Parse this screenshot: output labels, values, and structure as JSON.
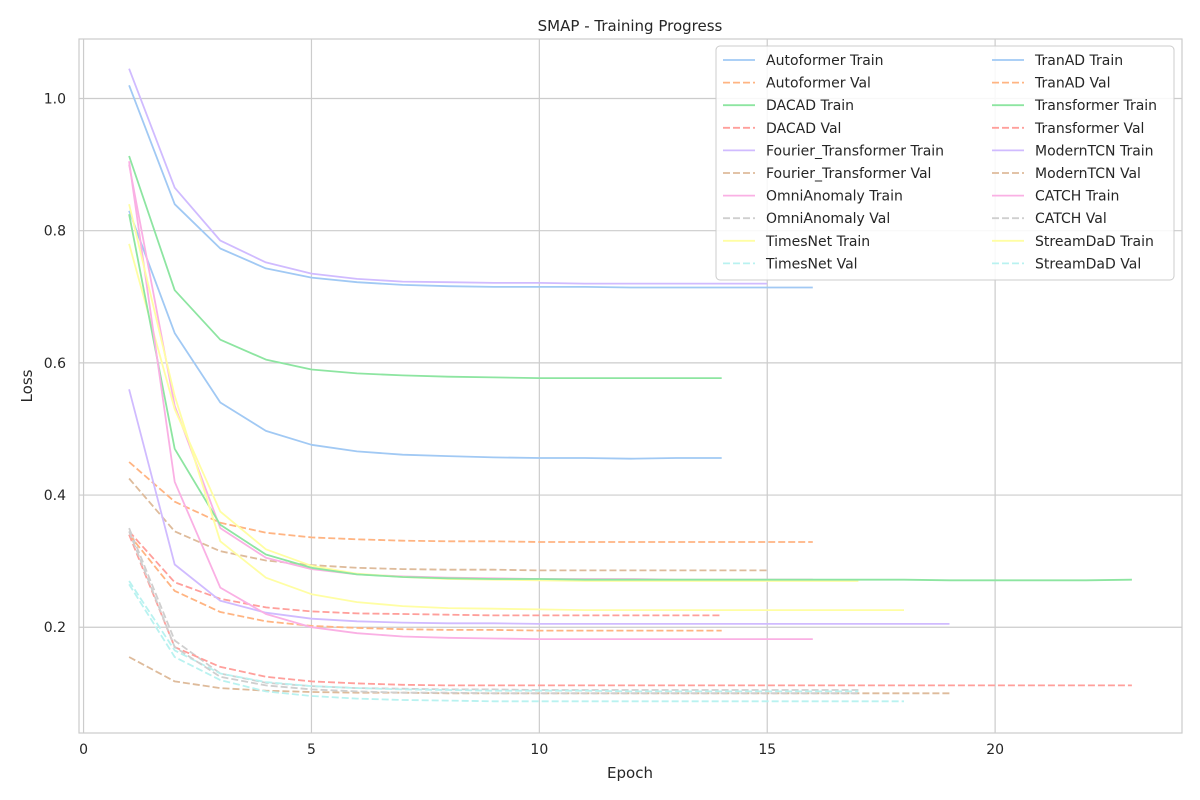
{
  "chart_data": {
    "type": "line",
    "title": "SMAP - Training Progress",
    "xlabel": "Epoch",
    "ylabel": "Loss",
    "xlim": [
      -0.1,
      24.1
    ],
    "ylim": [
      0.04,
      1.09
    ],
    "xticks": [
      0,
      5,
      10,
      15,
      20
    ],
    "yticks": [
      0.2,
      0.4,
      0.6,
      0.8,
      1.0
    ],
    "ytick_labels": [
      "0.2",
      "0.4",
      "0.6",
      "0.8",
      "1.0"
    ],
    "grid": true,
    "legend_placement": "upper right, 2 columns",
    "colors": {
      "blue": "#a1c9f4",
      "orange": "#ffb482",
      "green": "#8de5a1",
      "red": "#ff9f9b",
      "purple": "#d0bbff",
      "brown": "#debb9b",
      "pink": "#fab0e4",
      "gray": "#cfcfcf",
      "yellow": "#fffea3",
      "cyan": "#b9f2f0"
    },
    "series": [
      {
        "name": "Autoformer Train",
        "color": "blue",
        "style": "solid",
        "x": [
          1,
          2,
          3,
          4,
          5,
          6,
          7,
          8,
          9,
          10,
          11,
          12,
          13,
          14
        ],
        "y": [
          0.83,
          0.645,
          0.54,
          0.497,
          0.476,
          0.466,
          0.461,
          0.459,
          0.457,
          0.456,
          0.456,
          0.455,
          0.456,
          0.456
        ]
      },
      {
        "name": "Autoformer Val",
        "color": "orange",
        "style": "dashed",
        "x": [
          1,
          2,
          3,
          4,
          5,
          6,
          7,
          8,
          9,
          10,
          11,
          12,
          13,
          14,
          15,
          16
        ],
        "y": [
          0.45,
          0.39,
          0.358,
          0.343,
          0.336,
          0.333,
          0.331,
          0.33,
          0.33,
          0.329,
          0.329,
          0.329,
          0.329,
          0.329,
          0.329,
          0.329
        ]
      },
      {
        "name": "DACAD Train",
        "color": "green",
        "style": "solid",
        "x": [
          1,
          2,
          3,
          4,
          5,
          6,
          7,
          8,
          9,
          10,
          11,
          12,
          13,
          14
        ],
        "y": [
          0.913,
          0.71,
          0.635,
          0.605,
          0.59,
          0.584,
          0.581,
          0.579,
          0.578,
          0.577,
          0.577,
          0.577,
          0.577,
          0.577
        ]
      },
      {
        "name": "DACAD Val",
        "color": "red",
        "style": "dashed",
        "x": [
          1,
          2,
          3,
          4,
          5,
          6,
          7,
          8,
          9,
          10,
          11,
          12,
          13,
          14
        ],
        "y": [
          0.345,
          0.268,
          0.243,
          0.23,
          0.224,
          0.221,
          0.22,
          0.219,
          0.218,
          0.218,
          0.218,
          0.218,
          0.218,
          0.218
        ]
      },
      {
        "name": "Fourier_Transformer Train",
        "color": "purple",
        "style": "solid",
        "x": [
          1,
          2,
          3,
          4,
          5,
          6,
          7,
          8,
          9,
          10,
          11,
          12,
          13,
          14,
          15
        ],
        "y": [
          1.045,
          0.865,
          0.785,
          0.752,
          0.735,
          0.727,
          0.723,
          0.722,
          0.721,
          0.721,
          0.72,
          0.72,
          0.72,
          0.72,
          0.72
        ]
      },
      {
        "name": "Fourier_Transformer Val",
        "color": "brown",
        "style": "dashed",
        "x": [
          1,
          2,
          3,
          4,
          5,
          6,
          7,
          8,
          9,
          10,
          11,
          12,
          13,
          14,
          15
        ],
        "y": [
          0.425,
          0.345,
          0.315,
          0.301,
          0.294,
          0.29,
          0.288,
          0.287,
          0.287,
          0.286,
          0.286,
          0.286,
          0.286,
          0.286,
          0.286
        ]
      },
      {
        "name": "OmniAnomaly Train",
        "color": "pink",
        "style": "solid",
        "x": [
          1,
          2,
          3,
          4,
          5,
          6,
          7,
          8,
          9,
          10,
          11,
          12,
          13,
          14,
          15,
          16
        ],
        "y": [
          0.9,
          0.535,
          0.35,
          0.305,
          0.288,
          0.28,
          0.277,
          0.275,
          0.274,
          0.273,
          0.273,
          0.273,
          0.272,
          0.272,
          0.272,
          0.272
        ]
      },
      {
        "name": "OmniAnomaly Val",
        "color": "gray",
        "style": "dashed",
        "x": [
          1,
          2,
          3,
          4,
          5,
          6,
          7,
          8,
          9,
          10,
          11,
          12,
          13,
          14,
          15,
          16,
          17
        ],
        "y": [
          0.35,
          0.18,
          0.13,
          0.116,
          0.111,
          0.108,
          0.107,
          0.106,
          0.106,
          0.105,
          0.105,
          0.105,
          0.105,
          0.105,
          0.105,
          0.105,
          0.105
        ]
      },
      {
        "name": "TimesNet Train",
        "color": "yellow",
        "style": "solid",
        "x": [
          1,
          2,
          3,
          4,
          5,
          6,
          7,
          8,
          9,
          10,
          11,
          12,
          13,
          14,
          15,
          16,
          17
        ],
        "y": [
          0.78,
          0.53,
          0.375,
          0.318,
          0.293,
          0.281,
          0.276,
          0.273,
          0.272,
          0.271,
          0.27,
          0.27,
          0.27,
          0.27,
          0.27,
          0.27,
          0.27
        ]
      },
      {
        "name": "TimesNet Val",
        "color": "cyan",
        "style": "dashed",
        "x": [
          1,
          2,
          3,
          4,
          5,
          6,
          7,
          8,
          9,
          10,
          11,
          12,
          13,
          14,
          15,
          16,
          17
        ],
        "y": [
          0.27,
          0.165,
          0.13,
          0.117,
          0.111,
          0.108,
          0.106,
          0.105,
          0.104,
          0.104,
          0.104,
          0.103,
          0.103,
          0.103,
          0.103,
          0.103,
          0.103
        ]
      },
      {
        "name": "TranAD Train",
        "color": "blue",
        "style": "solid",
        "x": [
          1,
          2,
          3,
          4,
          5,
          6,
          7,
          8,
          9,
          10,
          11,
          12,
          13,
          14,
          15,
          16
        ],
        "y": [
          1.02,
          0.84,
          0.773,
          0.743,
          0.729,
          0.722,
          0.718,
          0.716,
          0.715,
          0.715,
          0.715,
          0.714,
          0.714,
          0.714,
          0.714,
          0.714
        ]
      },
      {
        "name": "TranAD Val",
        "color": "orange",
        "style": "dashed",
        "x": [
          1,
          2,
          3,
          4,
          5,
          6,
          7,
          8,
          9,
          10,
          11,
          12,
          13,
          14
        ],
        "y": [
          0.34,
          0.255,
          0.223,
          0.209,
          0.202,
          0.199,
          0.197,
          0.196,
          0.196,
          0.195,
          0.195,
          0.195,
          0.195,
          0.195
        ]
      },
      {
        "name": "Transformer Train",
        "color": "green",
        "style": "solid",
        "x": [
          1,
          2,
          3,
          4,
          5,
          6,
          7,
          8,
          9,
          10,
          11,
          12,
          13,
          14,
          15,
          16,
          17,
          18,
          19,
          20,
          21,
          22,
          23
        ],
        "y": [
          0.825,
          0.47,
          0.355,
          0.31,
          0.29,
          0.28,
          0.276,
          0.274,
          0.273,
          0.273,
          0.272,
          0.272,
          0.272,
          0.272,
          0.272,
          0.272,
          0.272,
          0.272,
          0.271,
          0.271,
          0.271,
          0.271,
          0.272
        ]
      },
      {
        "name": "Transformer Val",
        "color": "red",
        "style": "dashed",
        "x": [
          1,
          2,
          3,
          4,
          5,
          6,
          7,
          8,
          9,
          10,
          11,
          12,
          13,
          14,
          15,
          16,
          17,
          18,
          19,
          20,
          21,
          22,
          23
        ],
        "y": [
          0.34,
          0.17,
          0.14,
          0.125,
          0.118,
          0.115,
          0.113,
          0.112,
          0.112,
          0.112,
          0.112,
          0.112,
          0.112,
          0.112,
          0.112,
          0.112,
          0.112,
          0.112,
          0.112,
          0.112,
          0.112,
          0.112,
          0.112
        ]
      },
      {
        "name": "ModernTCN Train",
        "color": "purple",
        "style": "solid",
        "x": [
          1,
          2,
          3,
          4,
          5,
          6,
          7,
          8,
          9,
          10,
          11,
          12,
          13,
          14,
          15,
          16,
          17,
          18,
          19
        ],
        "y": [
          0.56,
          0.295,
          0.24,
          0.222,
          0.213,
          0.209,
          0.207,
          0.206,
          0.206,
          0.205,
          0.205,
          0.205,
          0.205,
          0.205,
          0.205,
          0.205,
          0.205,
          0.205,
          0.205
        ]
      },
      {
        "name": "ModernTCN Val",
        "color": "brown",
        "style": "dashed",
        "x": [
          1,
          2,
          3,
          4,
          5,
          6,
          7,
          8,
          9,
          10,
          11,
          12,
          13,
          14,
          15,
          16,
          17,
          18,
          19
        ],
        "y": [
          0.155,
          0.118,
          0.108,
          0.104,
          0.102,
          0.101,
          0.101,
          0.1,
          0.1,
          0.1,
          0.1,
          0.1,
          0.1,
          0.1,
          0.1,
          0.1,
          0.1,
          0.1,
          0.1
        ]
      },
      {
        "name": "CATCH Train",
        "color": "pink",
        "style": "solid",
        "x": [
          1,
          2,
          3,
          4,
          5,
          6,
          7,
          8,
          9,
          10,
          11,
          12,
          13,
          14,
          15,
          16
        ],
        "y": [
          0.905,
          0.42,
          0.26,
          0.22,
          0.2,
          0.191,
          0.186,
          0.184,
          0.183,
          0.182,
          0.182,
          0.182,
          0.182,
          0.182,
          0.182,
          0.182
        ]
      },
      {
        "name": "CATCH Val",
        "color": "gray",
        "style": "dashed",
        "x": [
          1,
          2,
          3,
          4,
          5,
          6,
          7,
          8,
          9,
          10,
          11,
          12,
          13,
          14,
          15,
          16,
          17
        ],
        "y": [
          0.345,
          0.17,
          0.125,
          0.112,
          0.106,
          0.103,
          0.101,
          0.101,
          0.1,
          0.1,
          0.1,
          0.1,
          0.1,
          0.1,
          0.1,
          0.1,
          0.1
        ]
      },
      {
        "name": "StreamDaD Train",
        "color": "yellow",
        "style": "solid",
        "x": [
          1,
          2,
          3,
          4,
          5,
          6,
          7,
          8,
          9,
          10,
          11,
          12,
          13,
          14,
          15,
          16,
          17,
          18
        ],
        "y": [
          0.84,
          0.55,
          0.33,
          0.275,
          0.25,
          0.238,
          0.232,
          0.229,
          0.228,
          0.227,
          0.226,
          0.226,
          0.226,
          0.226,
          0.226,
          0.226,
          0.226,
          0.226
        ]
      },
      {
        "name": "StreamDaD Val",
        "color": "cyan",
        "style": "dashed",
        "x": [
          1,
          2,
          3,
          4,
          5,
          6,
          7,
          8,
          9,
          10,
          11,
          12,
          13,
          14,
          15,
          16,
          17,
          18
        ],
        "y": [
          0.265,
          0.155,
          0.12,
          0.103,
          0.096,
          0.092,
          0.09,
          0.089,
          0.088,
          0.088,
          0.088,
          0.088,
          0.088,
          0.088,
          0.088,
          0.088,
          0.088,
          0.088
        ]
      }
    ]
  }
}
